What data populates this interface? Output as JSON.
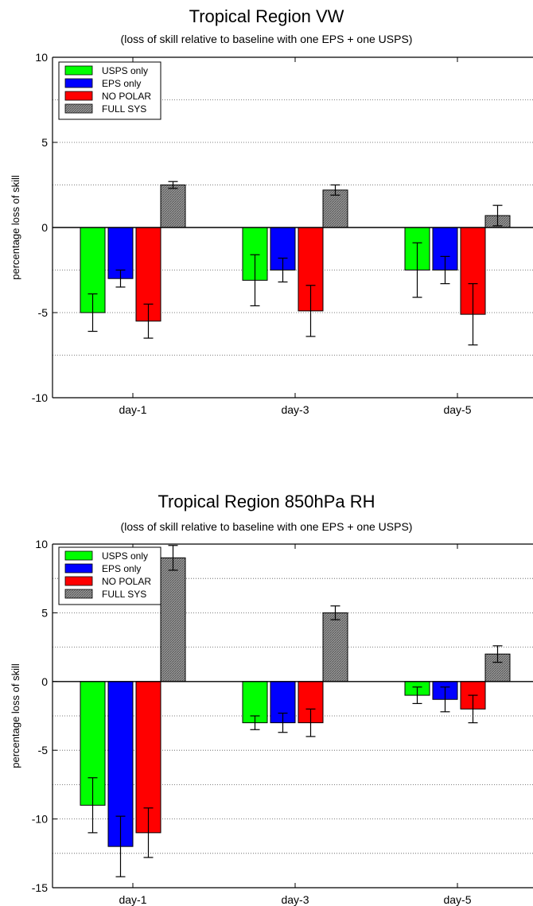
{
  "chart_data": [
    {
      "type": "bar",
      "title": "Tropical Region VW",
      "subtitle": "(loss of skill relative to baseline with one EPS + one USPS)",
      "xlabel": "",
      "ylabel": "percentage loss of skill",
      "ylim": [
        -10,
        10
      ],
      "yticks": [
        -10,
        -5,
        0,
        5,
        10
      ],
      "ytick_labels": [
        "-10",
        "-5",
        "0",
        "5",
        "10"
      ],
      "grid": "dotted horizontal",
      "legend_position": "top-left",
      "categories": [
        "day-1",
        "day-3",
        "day-5"
      ],
      "series": [
        {
          "name": "USPS only",
          "color": "#00ff00",
          "pattern": "solid",
          "values": [
            -5.0,
            -3.1,
            -2.5
          ],
          "error": [
            1.1,
            1.5,
            1.6
          ]
        },
        {
          "name": "EPS only",
          "color": "#0000ff",
          "pattern": "solid",
          "values": [
            -3.0,
            -2.5,
            -2.5
          ],
          "error": [
            0.5,
            0.7,
            0.8
          ]
        },
        {
          "name": "NO POLAR",
          "color": "#ff0000",
          "pattern": "solid",
          "values": [
            -5.5,
            -4.9,
            -5.1
          ],
          "error": [
            1.0,
            1.5,
            1.8
          ]
        },
        {
          "name": "FULL SYS",
          "color": "#8a8a8a",
          "pattern": "hatched",
          "values": [
            2.5,
            2.2,
            0.7
          ],
          "error": [
            0.2,
            0.3,
            0.6
          ]
        }
      ]
    },
    {
      "type": "bar",
      "title": "Tropical Region 850hPa RH",
      "subtitle": "(loss of skill relative to baseline with one EPS + one USPS)",
      "xlabel": "",
      "ylabel": "percentage loss of skill",
      "ylim": [
        -15,
        10
      ],
      "yticks": [
        -15,
        -10,
        -5,
        0,
        5,
        10
      ],
      "ytick_labels": [
        "-15",
        "-10",
        "-5",
        "0",
        "5",
        "10"
      ],
      "grid": "dotted horizontal",
      "legend_position": "top-left",
      "categories": [
        "day-1",
        "day-3",
        "day-5"
      ],
      "series": [
        {
          "name": "USPS only",
          "color": "#00ff00",
          "pattern": "solid",
          "values": [
            -9.0,
            -3.0,
            -1.0
          ],
          "error": [
            2.0,
            0.5,
            0.6
          ]
        },
        {
          "name": "EPS only",
          "color": "#0000ff",
          "pattern": "solid",
          "values": [
            -12.0,
            -3.0,
            -1.3
          ],
          "error": [
            2.2,
            0.7,
            0.9
          ]
        },
        {
          "name": "NO POLAR",
          "color": "#ff0000",
          "pattern": "solid",
          "values": [
            -11.0,
            -3.0,
            -2.0
          ],
          "error": [
            1.8,
            1.0,
            1.0
          ]
        },
        {
          "name": "FULL SYS",
          "color": "#8a8a8a",
          "pattern": "hatched",
          "values": [
            9.0,
            5.0,
            2.0
          ],
          "error": [
            0.9,
            0.5,
            0.6
          ]
        }
      ]
    }
  ]
}
